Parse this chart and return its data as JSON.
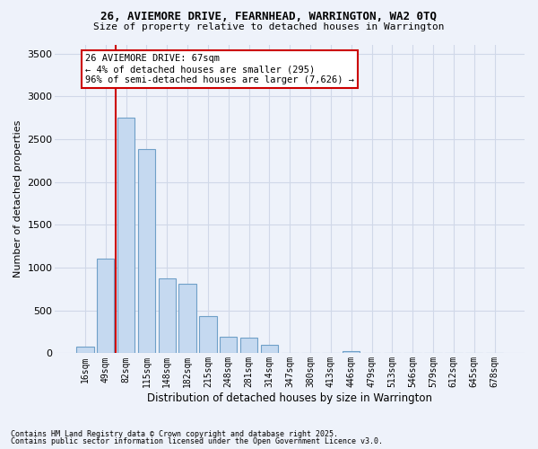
{
  "title1": "26, AVIEMORE DRIVE, FEARNHEAD, WARRINGTON, WA2 0TQ",
  "title2": "Size of property relative to detached houses in Warrington",
  "xlabel": "Distribution of detached houses by size in Warrington",
  "ylabel": "Number of detached properties",
  "categories": [
    "16sqm",
    "49sqm",
    "82sqm",
    "115sqm",
    "148sqm",
    "182sqm",
    "215sqm",
    "248sqm",
    "281sqm",
    "314sqm",
    "347sqm",
    "380sqm",
    "413sqm",
    "446sqm",
    "479sqm",
    "513sqm",
    "546sqm",
    "579sqm",
    "612sqm",
    "645sqm",
    "678sqm"
  ],
  "bar_heights": [
    75,
    1100,
    2750,
    2380,
    870,
    810,
    430,
    195,
    185,
    95,
    0,
    0,
    5,
    25,
    0,
    0,
    5,
    0,
    0,
    0,
    0
  ],
  "bar_color": "#c5d9f0",
  "bar_edgecolor": "#6fa0c8",
  "grid_color": "#d0d8e8",
  "background_color": "#eef2fa",
  "vline_x": 1.5,
  "vline_color": "#cc0000",
  "annotation_text": "26 AVIEMORE DRIVE: 67sqm\n← 4% of detached houses are smaller (295)\n96% of semi-detached houses are larger (7,626) →",
  "annotation_box_facecolor": "#ffffff",
  "annotation_box_edgecolor": "#cc0000",
  "ylim": [
    0,
    3600
  ],
  "yticks": [
    0,
    500,
    1000,
    1500,
    2000,
    2500,
    3000,
    3500
  ],
  "footnote1": "Contains HM Land Registry data © Crown copyright and database right 2025.",
  "footnote2": "Contains public sector information licensed under the Open Government Licence v3.0."
}
